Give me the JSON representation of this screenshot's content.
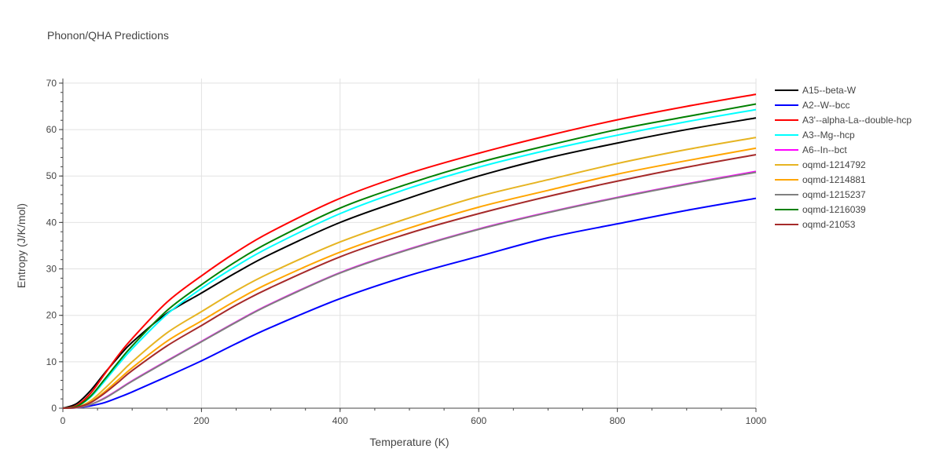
{
  "chart_data": {
    "type": "line",
    "title": "Phonon/QHA Predictions",
    "xlabel": "Temperature (K)",
    "ylabel": "Entropy (J/K/mol)",
    "xlim": [
      0,
      1000
    ],
    "ylim": [
      0,
      71
    ],
    "x_ticks": [
      0,
      200,
      400,
      600,
      800,
      1000
    ],
    "y_ticks": [
      0,
      10,
      20,
      30,
      40,
      50,
      60,
      70
    ],
    "grid": true,
    "legend_position": "right",
    "x": [
      0,
      20,
      40,
      60,
      80,
      100,
      150,
      200,
      250,
      300,
      400,
      500,
      600,
      700,
      800,
      900,
      1000
    ],
    "series": [
      {
        "name": "A15--beta-W",
        "color": "#000000",
        "values": [
          0,
          1.0,
          3.8,
          7.5,
          11.0,
          14.2,
          20.4,
          24.8,
          29.2,
          33.2,
          40.0,
          45.3,
          50.0,
          53.9,
          57.1,
          60.0,
          62.5
        ]
      },
      {
        "name": "A2--W--bcc",
        "color": "#0000ff",
        "values": [
          0,
          0.1,
          0.5,
          1.2,
          2.3,
          3.5,
          6.8,
          10.2,
          13.9,
          17.4,
          23.6,
          28.6,
          32.7,
          36.7,
          39.7,
          42.6,
          45.2
        ]
      },
      {
        "name": "A3'--alpha-La--double-hcp",
        "color": "#ff0000",
        "values": [
          0,
          0.6,
          3.2,
          7.3,
          11.4,
          15.0,
          22.8,
          28.5,
          33.6,
          38.0,
          45.2,
          50.6,
          54.9,
          58.7,
          62.1,
          65.0,
          67.6
        ]
      },
      {
        "name": "A3--Mg--hcp",
        "color": "#00ffff",
        "values": [
          0,
          0.4,
          2.4,
          5.8,
          9.4,
          12.8,
          20.2,
          25.8,
          30.6,
          34.8,
          41.9,
          47.4,
          51.9,
          55.6,
          58.8,
          61.7,
          64.3
        ]
      },
      {
        "name": "A6--In--bct",
        "color": "#ff00ff",
        "values": [
          0,
          0.1,
          0.8,
          2.2,
          4.0,
          5.9,
          10.2,
          14.4,
          18.6,
          22.5,
          29.2,
          34.3,
          38.6,
          42.2,
          45.4,
          48.3,
          51.0
        ]
      },
      {
        "name": "oqmd-1214792",
        "color": "#e6b422",
        "values": [
          0,
          0.2,
          1.6,
          4.2,
          7.1,
          10.0,
          16.2,
          20.8,
          25.3,
          29.2,
          35.8,
          41.0,
          45.6,
          49.2,
          52.7,
          55.7,
          58.3
        ]
      },
      {
        "name": "oqmd-1214881",
        "color": "#ffa500",
        "values": [
          0,
          0.2,
          1.3,
          3.5,
          6.1,
          8.7,
          14.4,
          18.8,
          23.2,
          27.1,
          33.6,
          38.8,
          43.3,
          46.9,
          50.4,
          53.3,
          56.0
        ]
      },
      {
        "name": "oqmd-1215237",
        "color": "#808080",
        "values": [
          0,
          0.1,
          0.8,
          2.1,
          3.9,
          5.8,
          10.1,
          14.3,
          18.5,
          22.4,
          29.1,
          34.2,
          38.5,
          42.1,
          45.3,
          48.2,
          50.8
        ]
      },
      {
        "name": "oqmd-1216039",
        "color": "#008000",
        "values": [
          0,
          0.4,
          2.6,
          6.2,
          9.9,
          13.4,
          21.0,
          26.6,
          31.6,
          35.9,
          43.1,
          48.4,
          52.9,
          56.6,
          60.0,
          62.8,
          65.5
        ]
      },
      {
        "name": "oqmd-21053",
        "color": "#a52a2a",
        "values": [
          0,
          0.2,
          1.2,
          3.2,
          5.6,
          8.1,
          13.4,
          17.8,
          22.2,
          26.0,
          32.6,
          37.7,
          41.9,
          45.6,
          48.9,
          51.9,
          54.6
        ]
      }
    ]
  }
}
